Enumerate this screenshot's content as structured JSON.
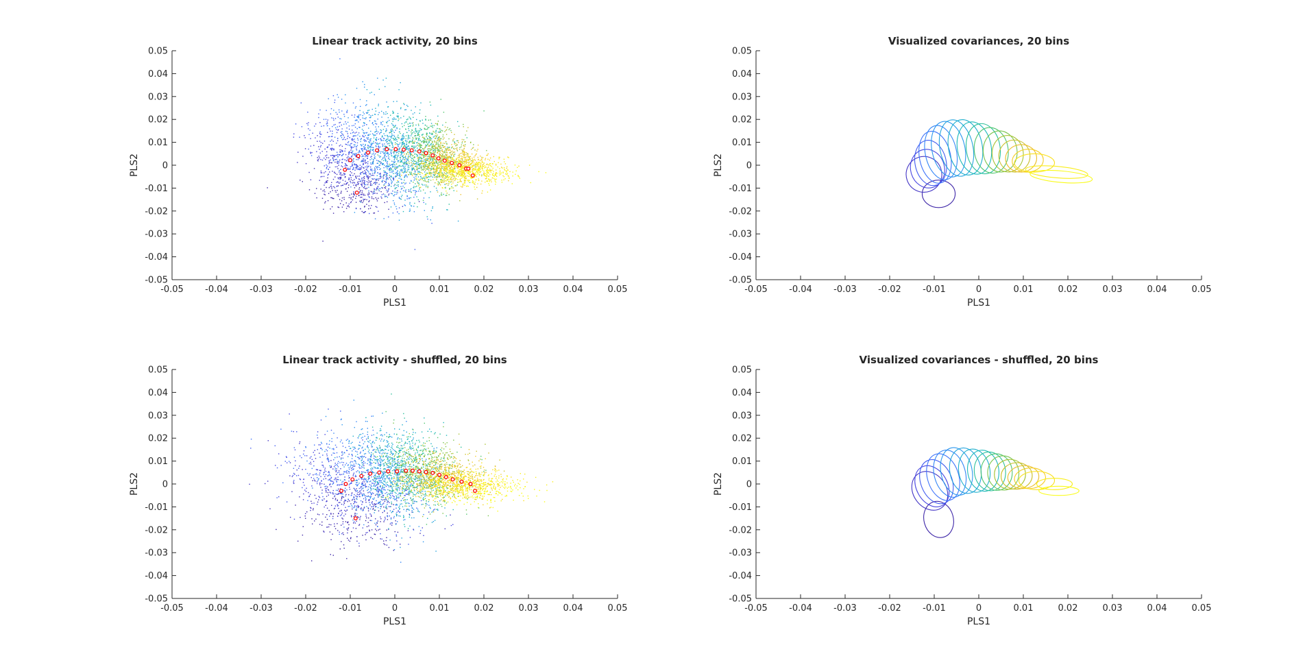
{
  "figure": {
    "colors": {
      "axis": "#262626",
      "centroid_edge": "#ff0000",
      "centroid_face": "#ffffff",
      "colormap": [
        "#3e26a8",
        "#4743e0",
        "#3f6efb",
        "#2c92f3",
        "#1fabd3",
        "#19bdb0",
        "#5ec75b",
        "#b6c22d",
        "#f2c02d",
        "#f9e21c",
        "#f9fb15"
      ]
    }
  },
  "chart_data": [
    {
      "type": "scatter",
      "title": "Linear track activity, 20 bins",
      "xlabel": "PLS1",
      "ylabel": "PLS2",
      "xlim": [
        -0.05,
        0.05
      ],
      "ylim": [
        -0.05,
        0.05
      ],
      "xticks": [
        -0.05,
        -0.04,
        -0.03,
        -0.02,
        -0.01,
        0,
        0.01,
        0.02,
        0.03,
        0.04,
        0.05
      ],
      "yticks": [
        -0.05,
        -0.04,
        -0.03,
        -0.02,
        -0.01,
        0,
        0.01,
        0.02,
        0.03,
        0.04,
        0.05
      ],
      "tick_labels": [
        "-0.05",
        "-0.04",
        "-0.03",
        "-0.02",
        "-0.01",
        "0",
        "0.01",
        "0.02",
        "0.03",
        "0.04",
        "0.05"
      ],
      "grid": false,
      "colormap": "parula",
      "n_bins": 20,
      "bin_means": [
        [
          -0.0085,
          -0.012
        ],
        [
          -0.0112,
          -0.002
        ],
        [
          -0.01,
          0.0022
        ],
        [
          -0.0082,
          0.004
        ],
        [
          -0.006,
          0.0055
        ],
        [
          -0.004,
          0.0065
        ],
        [
          -0.0018,
          0.007
        ],
        [
          0.0002,
          0.007
        ],
        [
          0.002,
          0.0068
        ],
        [
          0.0038,
          0.0065
        ],
        [
          0.0055,
          0.006
        ],
        [
          0.007,
          0.0053
        ],
        [
          0.0085,
          0.0043
        ],
        [
          0.0098,
          0.003
        ],
        [
          0.0112,
          0.002
        ],
        [
          0.0128,
          0.001
        ],
        [
          0.0145,
          0.0
        ],
        [
          0.016,
          -0.0015
        ],
        [
          0.0165,
          -0.0015
        ],
        [
          0.0175,
          -0.0045
        ]
      ],
      "cloud_spread": [
        [
          0.005,
          0.005
        ],
        [
          0.0035,
          0.007
        ],
        [
          0.004,
          0.009
        ],
        [
          0.004,
          0.011
        ],
        [
          0.004,
          0.012
        ],
        [
          0.004,
          0.012
        ],
        [
          0.004,
          0.012
        ],
        [
          0.004,
          0.0115
        ],
        [
          0.004,
          0.011
        ],
        [
          0.004,
          0.01
        ],
        [
          0.004,
          0.009
        ],
        [
          0.004,
          0.008
        ],
        [
          0.004,
          0.007
        ],
        [
          0.0035,
          0.006
        ],
        [
          0.0035,
          0.005
        ],
        [
          0.0035,
          0.004
        ],
        [
          0.004,
          0.0035
        ],
        [
          0.0045,
          0.003
        ],
        [
          0.0045,
          0.0028
        ],
        [
          0.005,
          0.0025
        ]
      ],
      "cloud_angle_deg": [
        0,
        30,
        25,
        20,
        18,
        15,
        12,
        10,
        8,
        6,
        5,
        5,
        5,
        5,
        5,
        5,
        4,
        3,
        3,
        2
      ]
    },
    {
      "type": "ellipses",
      "title": "Visualized covariances, 20 bins",
      "xlabel": "PLS1",
      "ylabel": "PLS2",
      "xlim": [
        -0.05,
        0.05
      ],
      "ylim": [
        -0.05,
        0.05
      ],
      "xticks": [
        -0.05,
        -0.04,
        -0.03,
        -0.02,
        -0.01,
        0,
        0.01,
        0.02,
        0.03,
        0.04,
        0.05
      ],
      "yticks": [
        -0.05,
        -0.04,
        -0.03,
        -0.02,
        -0.01,
        0,
        0.01,
        0.02,
        0.03,
        0.04,
        0.05
      ],
      "tick_labels": [
        "-0.05",
        "-0.04",
        "-0.03",
        "-0.02",
        "-0.01",
        "0",
        "0.01",
        "0.02",
        "0.03",
        "0.04",
        "0.05"
      ],
      "grid": false,
      "colormap": "parula",
      "n_bins": 20,
      "ellipses": [
        {
          "cx": -0.009,
          "cy": -0.0125,
          "rx": 0.0037,
          "ry": 0.006,
          "angle": 0
        },
        {
          "cx": -0.0123,
          "cy": -0.004,
          "rx": 0.004,
          "ry": 0.0078,
          "angle": 20
        },
        {
          "cx": -0.0115,
          "cy": -0.0015,
          "rx": 0.0038,
          "ry": 0.0085,
          "angle": 15
        },
        {
          "cx": -0.0108,
          "cy": 0.001,
          "rx": 0.0035,
          "ry": 0.01,
          "angle": 12
        },
        {
          "cx": -0.0098,
          "cy": 0.0035,
          "rx": 0.0035,
          "ry": 0.0115,
          "angle": 12
        },
        {
          "cx": -0.0085,
          "cy": 0.0055,
          "rx": 0.0035,
          "ry": 0.012,
          "angle": 12
        },
        {
          "cx": -0.0068,
          "cy": 0.007,
          "rx": 0.0037,
          "ry": 0.0123,
          "angle": 12
        },
        {
          "cx": -0.005,
          "cy": 0.0075,
          "rx": 0.0037,
          "ry": 0.0125,
          "angle": 12
        },
        {
          "cx": -0.003,
          "cy": 0.0078,
          "rx": 0.0038,
          "ry": 0.0122,
          "angle": 10
        },
        {
          "cx": -0.001,
          "cy": 0.0075,
          "rx": 0.0038,
          "ry": 0.0115,
          "angle": 10
        },
        {
          "cx": 0.001,
          "cy": 0.0072,
          "rx": 0.0038,
          "ry": 0.011,
          "angle": 8
        },
        {
          "cx": 0.0028,
          "cy": 0.0065,
          "rx": 0.0038,
          "ry": 0.01,
          "angle": 8
        },
        {
          "cx": 0.0048,
          "cy": 0.006,
          "rx": 0.0038,
          "ry": 0.009,
          "angle": 6
        },
        {
          "cx": 0.0065,
          "cy": 0.005,
          "rx": 0.0035,
          "ry": 0.008,
          "angle": 5
        },
        {
          "cx": 0.008,
          "cy": 0.004,
          "rx": 0.0035,
          "ry": 0.007,
          "angle": 5
        },
        {
          "cx": 0.0095,
          "cy": 0.003,
          "rx": 0.0035,
          "ry": 0.006,
          "angle": 5
        },
        {
          "cx": 0.011,
          "cy": 0.002,
          "rx": 0.0035,
          "ry": 0.005,
          "angle": 5
        },
        {
          "cx": 0.0125,
          "cy": 0.001,
          "rx": 0.0045,
          "ry": 0.004,
          "angle": 0
        },
        {
          "cx": 0.0175,
          "cy": -0.003,
          "rx": 0.007,
          "ry": 0.0025,
          "angle": -5
        },
        {
          "cx": 0.0185,
          "cy": -0.005,
          "rx": 0.007,
          "ry": 0.0025,
          "angle": -5
        }
      ]
    },
    {
      "type": "scatter",
      "title": "Linear track activity - shuffled, 20 bins",
      "xlabel": "PLS1",
      "ylabel": "PLS2",
      "xlim": [
        -0.05,
        0.05
      ],
      "ylim": [
        -0.05,
        0.05
      ],
      "xticks": [
        -0.05,
        -0.04,
        -0.03,
        -0.02,
        -0.01,
        0,
        0.01,
        0.02,
        0.03,
        0.04,
        0.05
      ],
      "yticks": [
        -0.05,
        -0.04,
        -0.03,
        -0.02,
        -0.01,
        0,
        0.01,
        0.02,
        0.03,
        0.04,
        0.05
      ],
      "tick_labels": [
        "-0.05",
        "-0.04",
        "-0.03",
        "-0.02",
        "-0.01",
        "0",
        "0.01",
        "0.02",
        "0.03",
        "0.04",
        "0.05"
      ],
      "grid": false,
      "colormap": "parula",
      "n_bins": 20,
      "bin_means": [
        [
          -0.0088,
          -0.015
        ],
        [
          -0.012,
          -0.003
        ],
        [
          -0.011,
          0.0
        ],
        [
          -0.0095,
          0.002
        ],
        [
          -0.0075,
          0.0035
        ],
        [
          -0.0055,
          0.0045
        ],
        [
          -0.0035,
          0.005
        ],
        [
          -0.0015,
          0.0055
        ],
        [
          0.0005,
          0.0055
        ],
        [
          0.0025,
          0.0058
        ],
        [
          0.004,
          0.0058
        ],
        [
          0.0055,
          0.0055
        ],
        [
          0.007,
          0.0052
        ],
        [
          0.0085,
          0.0048
        ],
        [
          0.01,
          0.004
        ],
        [
          0.0115,
          0.003
        ],
        [
          0.013,
          0.002
        ],
        [
          0.015,
          0.001
        ],
        [
          0.017,
          0.0
        ],
        [
          0.018,
          -0.003
        ]
      ],
      "cloud_spread": [
        [
          0.006,
          0.007
        ],
        [
          0.006,
          0.009
        ],
        [
          0.006,
          0.01
        ],
        [
          0.006,
          0.011
        ],
        [
          0.0055,
          0.011
        ],
        [
          0.005,
          0.011
        ],
        [
          0.005,
          0.011
        ],
        [
          0.0045,
          0.0105
        ],
        [
          0.0045,
          0.01
        ],
        [
          0.0045,
          0.0095
        ],
        [
          0.0045,
          0.009
        ],
        [
          0.0045,
          0.008
        ],
        [
          0.0045,
          0.007
        ],
        [
          0.0045,
          0.006
        ],
        [
          0.0045,
          0.005
        ],
        [
          0.0045,
          0.0045
        ],
        [
          0.005,
          0.004
        ],
        [
          0.0055,
          0.0035
        ],
        [
          0.006,
          0.003
        ],
        [
          0.006,
          0.003
        ]
      ],
      "cloud_angle_deg": [
        20,
        35,
        30,
        25,
        20,
        15,
        12,
        10,
        8,
        6,
        5,
        5,
        5,
        5,
        5,
        5,
        4,
        3,
        3,
        2
      ]
    },
    {
      "type": "ellipses",
      "title": "Visualized covariances - shuffled, 20 bins",
      "xlabel": "PLS1",
      "ylabel": "PLS2",
      "xlim": [
        -0.05,
        0.05
      ],
      "ylim": [
        -0.05,
        0.05
      ],
      "xticks": [
        -0.05,
        -0.04,
        -0.03,
        -0.02,
        -0.01,
        0,
        0.01,
        0.02,
        0.03,
        0.04,
        0.05
      ],
      "yticks": [
        -0.05,
        -0.04,
        -0.03,
        -0.02,
        -0.01,
        0,
        0.01,
        0.02,
        0.03,
        0.04,
        0.05
      ],
      "tick_labels": [
        "-0.05",
        "-0.04",
        "-0.03",
        "-0.02",
        "-0.01",
        "0",
        "0.01",
        "0.02",
        "0.03",
        "0.04",
        "0.05"
      ],
      "grid": false,
      "colormap": "parula",
      "n_bins": 20,
      "ellipses": [
        {
          "cx": -0.009,
          "cy": -0.0155,
          "rx": 0.0033,
          "ry": 0.008,
          "angle": 15
        },
        {
          "cx": -0.011,
          "cy": -0.003,
          "rx": 0.0037,
          "ry": 0.009,
          "angle": 35
        },
        {
          "cx": -0.0105,
          "cy": -0.001,
          "rx": 0.0035,
          "ry": 0.0095,
          "angle": 28
        },
        {
          "cx": -0.0095,
          "cy": 0.001,
          "rx": 0.0035,
          "ry": 0.01,
          "angle": 22
        },
        {
          "cx": -0.008,
          "cy": 0.003,
          "rx": 0.0035,
          "ry": 0.0105,
          "angle": 18
        },
        {
          "cx": -0.0065,
          "cy": 0.0045,
          "rx": 0.0035,
          "ry": 0.0105,
          "angle": 15
        },
        {
          "cx": -0.005,
          "cy": 0.0055,
          "rx": 0.0035,
          "ry": 0.0105,
          "angle": 12
        },
        {
          "cx": -0.003,
          "cy": 0.0058,
          "rx": 0.0035,
          "ry": 0.01,
          "angle": 10
        },
        {
          "cx": -0.001,
          "cy": 0.0058,
          "rx": 0.0035,
          "ry": 0.0095,
          "angle": 10
        },
        {
          "cx": 0.001,
          "cy": 0.0058,
          "rx": 0.0035,
          "ry": 0.009,
          "angle": 8
        },
        {
          "cx": 0.0025,
          "cy": 0.0055,
          "rx": 0.0035,
          "ry": 0.0085,
          "angle": 8
        },
        {
          "cx": 0.004,
          "cy": 0.0052,
          "rx": 0.0035,
          "ry": 0.008,
          "angle": 6
        },
        {
          "cx": 0.0055,
          "cy": 0.0048,
          "rx": 0.0035,
          "ry": 0.0075,
          "angle": 6
        },
        {
          "cx": 0.007,
          "cy": 0.0042,
          "rx": 0.0035,
          "ry": 0.0065,
          "angle": 5
        },
        {
          "cx": 0.0085,
          "cy": 0.0035,
          "rx": 0.0035,
          "ry": 0.0058,
          "angle": 5
        },
        {
          "cx": 0.01,
          "cy": 0.003,
          "rx": 0.0035,
          "ry": 0.005,
          "angle": 5
        },
        {
          "cx": 0.0115,
          "cy": 0.0025,
          "rx": 0.0035,
          "ry": 0.0045,
          "angle": 5
        },
        {
          "cx": 0.013,
          "cy": 0.0015,
          "rx": 0.004,
          "ry": 0.004,
          "angle": 0
        },
        {
          "cx": 0.017,
          "cy": 0.0,
          "rx": 0.004,
          "ry": 0.0025,
          "angle": 0
        },
        {
          "cx": 0.018,
          "cy": -0.003,
          "rx": 0.0045,
          "ry": 0.002,
          "angle": 0
        }
      ]
    }
  ]
}
